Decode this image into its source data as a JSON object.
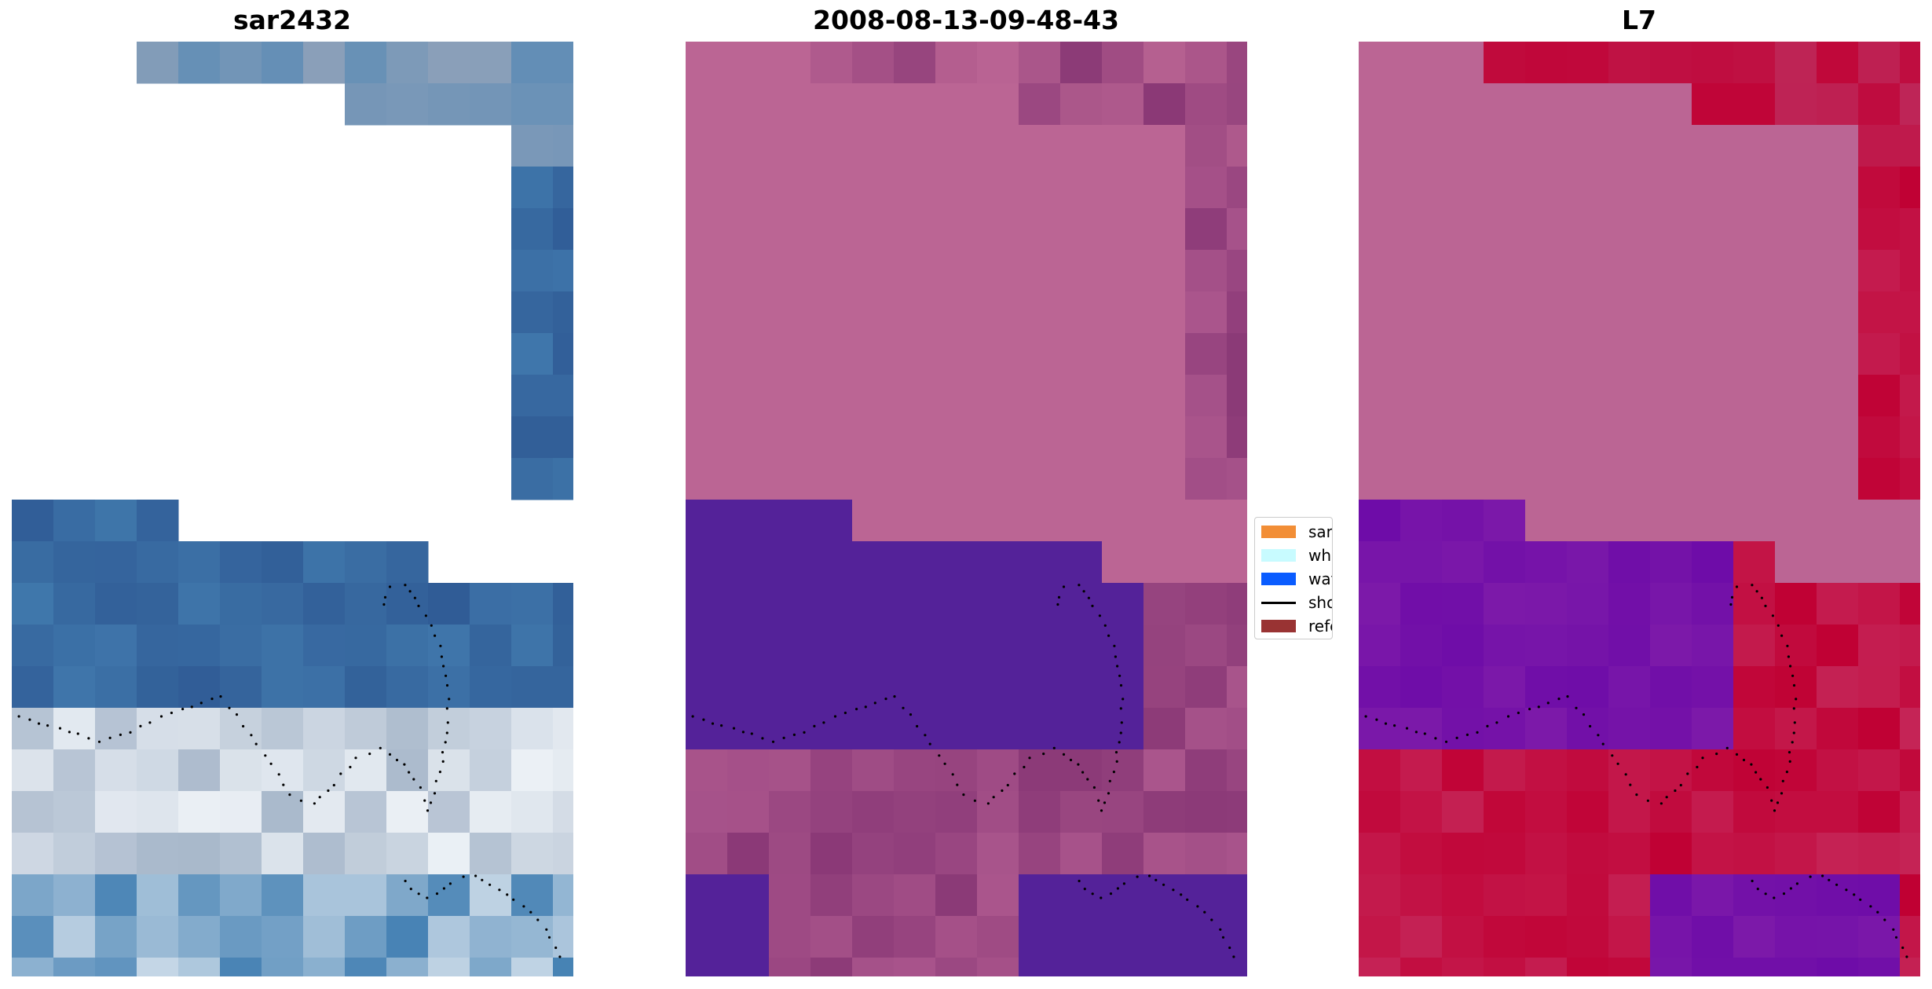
{
  "panels": [
    {
      "title": "sar2432"
    },
    {
      "title": "2008-08-13-09-48-43"
    },
    {
      "title": "L7"
    }
  ],
  "legend": [
    {
      "label": "sand",
      "color": "#f28e36"
    },
    {
      "label": "whitewater",
      "color": "#c8fbff"
    },
    {
      "label": "water",
      "color": "#0a5cff"
    },
    {
      "label": "shoreline",
      "color": "#000000",
      "kind": "line"
    },
    {
      "label": "reference shoreline",
      "color": "#993333"
    }
  ],
  "colors": {
    "land_mask": "#bb6594",
    "water_class": "#542299",
    "ndwi_high": "#c00033",
    "ndwi_low": "#6e0ca8",
    "shoreline_dots": "#000000"
  }
}
